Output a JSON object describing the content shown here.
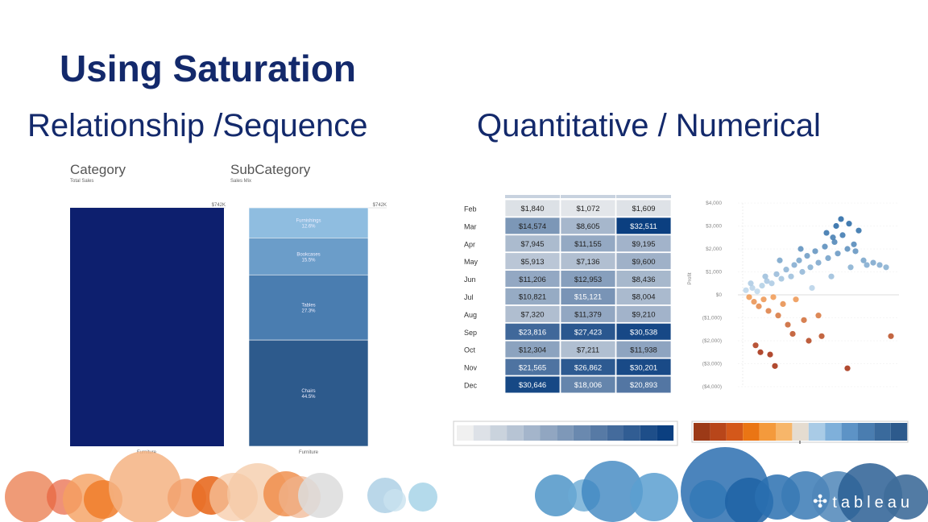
{
  "slide": {
    "title": "Using Saturation",
    "left_heading": "Relationship /Sequence",
    "right_heading": "Quantitative / Numerical",
    "logo_text": "tableau"
  },
  "colors": {
    "title": "#13296b",
    "navy": "#0d1f6e",
    "sub_bars": [
      "#8fbde0",
      "#6b9dc9",
      "#4a7db0",
      "#2d5a8c"
    ],
    "heatmap_low": "#f0f0f0",
    "heatmap_high": "#0b3f80",
    "orange": "#d9541e",
    "blue": "#2f6ea8"
  },
  "chart_data": [
    {
      "type": "bar",
      "title": "Category",
      "subtitle": "Total Sales",
      "categories": [
        "Furniture"
      ],
      "values": [
        742
      ],
      "total_label": "$742K",
      "ylim": [
        0,
        742
      ]
    },
    {
      "type": "bar",
      "title": "SubCategory",
      "subtitle": "Sales Mix",
      "categories": [
        "Furniture"
      ],
      "total_label": "$742K",
      "stack": [
        {
          "name": "Furnishings",
          "pct_label": "12.6%",
          "value": 12.6
        },
        {
          "name": "Bookcases",
          "pct_label": "15.5%",
          "value": 15.5
        },
        {
          "name": "Tables",
          "pct_label": "27.3%",
          "value": 27.3
        },
        {
          "name": "Chairs",
          "pct_label": "44.5%",
          "value": 44.5
        }
      ]
    },
    {
      "type": "heatmap",
      "rows": [
        "Feb",
        "Mar",
        "Apr",
        "May",
        "Jun",
        "Jul",
        "Aug",
        "Sep",
        "Oct",
        "Nov",
        "Dec"
      ],
      "row_labels": [
        "Feb",
        "Mar",
        "Apr",
        "May",
        "Jun",
        "Jul",
        "Aug",
        "Sep",
        "Oct",
        "Nov",
        "Dec"
      ],
      "cells": [
        [
          "$1,840",
          "$1,072",
          "$1,609"
        ],
        [
          "$14,574",
          "$8,605",
          "$32,511"
        ],
        [
          "$7,945",
          "$11,155",
          "$9,195"
        ],
        [
          "$5,913",
          "$7,136",
          "$9,600"
        ],
        [
          "$11,206",
          "$12,953",
          "$8,436"
        ],
        [
          "$10,821",
          "$15,121",
          "$8,004"
        ],
        [
          "$7,320",
          "$11,379",
          "$9,210"
        ],
        [
          "$23,816",
          "$27,423",
          "$30,538"
        ],
        [
          "$12,304",
          "$7,211",
          "$11,938"
        ],
        [
          "$21,565",
          "$26,862",
          "$30,201"
        ],
        [
          "$30,646",
          "$18,006",
          "$20,893"
        ]
      ],
      "values": [
        [
          1840,
          1072,
          1609
        ],
        [
          14574,
          8605,
          32511
        ],
        [
          7945,
          11155,
          9195
        ],
        [
          5913,
          7136,
          9600
        ],
        [
          11206,
          12953,
          8436
        ],
        [
          10821,
          15121,
          8004
        ],
        [
          7320,
          11379,
          9210
        ],
        [
          23816,
          27423,
          30538
        ],
        [
          12304,
          7211,
          11938
        ],
        [
          21565,
          26862,
          30201
        ],
        [
          30646,
          18006,
          20893
        ]
      ],
      "value_range": [
        0,
        32511
      ]
    },
    {
      "type": "scatter",
      "ylabel": "Profit",
      "yticks": [
        "$4,000",
        "$3,000",
        "$2,000",
        "$1,000",
        "$0",
        "($1,000)",
        "($2,000)",
        "($3,000)",
        "($4,000)"
      ],
      "ylim": [
        -4000,
        4000
      ],
      "xlim": [
        0,
        10
      ],
      "diverging_colors": true,
      "points": [
        {
          "x": 0.5,
          "y": 200
        },
        {
          "x": 0.7,
          "y": -100
        },
        {
          "x": 0.9,
          "y": 300
        },
        {
          "x": 1.0,
          "y": -300
        },
        {
          "x": 1.2,
          "y": 150
        },
        {
          "x": 1.3,
          "y": -500
        },
        {
          "x": 1.5,
          "y": 400
        },
        {
          "x": 1.6,
          "y": -200
        },
        {
          "x": 1.8,
          "y": 600
        },
        {
          "x": 1.9,
          "y": -700
        },
        {
          "x": 2.1,
          "y": 500
        },
        {
          "x": 2.2,
          "y": -100
        },
        {
          "x": 2.4,
          "y": 900
        },
        {
          "x": 2.5,
          "y": -900
        },
        {
          "x": 2.7,
          "y": 700
        },
        {
          "x": 2.8,
          "y": -400
        },
        {
          "x": 3.0,
          "y": 1100
        },
        {
          "x": 3.1,
          "y": -1300
        },
        {
          "x": 3.3,
          "y": 800
        },
        {
          "x": 3.5,
          "y": 1300
        },
        {
          "x": 3.6,
          "y": -200
        },
        {
          "x": 3.8,
          "y": 1500
        },
        {
          "x": 4.0,
          "y": 1000
        },
        {
          "x": 4.1,
          "y": -1100
        },
        {
          "x": 4.3,
          "y": 1700
        },
        {
          "x": 4.5,
          "y": 1200
        },
        {
          "x": 4.6,
          "y": 300
        },
        {
          "x": 4.8,
          "y": 1900
        },
        {
          "x": 5.0,
          "y": 1400
        },
        {
          "x": 5.2,
          "y": -1800
        },
        {
          "x": 5.4,
          "y": 2100
        },
        {
          "x": 5.6,
          "y": 1600
        },
        {
          "x": 5.8,
          "y": 800
        },
        {
          "x": 6.0,
          "y": 2300
        },
        {
          "x": 6.2,
          "y": 1800
        },
        {
          "x": 6.5,
          "y": 2600
        },
        {
          "x": 6.8,
          "y": 2000
        },
        {
          "x": 7.0,
          "y": 1200
        },
        {
          "x": 7.2,
          "y": 2200
        },
        {
          "x": 7.5,
          "y": 2800
        },
        {
          "x": 7.8,
          "y": 1500
        },
        {
          "x": 8.0,
          "y": 1300
        },
        {
          "x": 8.4,
          "y": 1400
        },
        {
          "x": 8.8,
          "y": 1300
        },
        {
          "x": 9.2,
          "y": 1200
        },
        {
          "x": 9.5,
          "y": -1800
        },
        {
          "x": 1.4,
          "y": -2500
        },
        {
          "x": 2.0,
          "y": -2600
        },
        {
          "x": 2.3,
          "y": -3100
        },
        {
          "x": 1.1,
          "y": -2200
        },
        {
          "x": 6.8,
          "y": -3200
        },
        {
          "x": 3.4,
          "y": -1700
        },
        {
          "x": 4.4,
          "y": -2000
        },
        {
          "x": 5.0,
          "y": -900
        },
        {
          "x": 0.8,
          "y": 500
        },
        {
          "x": 1.7,
          "y": 800
        },
        {
          "x": 2.6,
          "y": 1500
        },
        {
          "x": 3.9,
          "y": 2000
        },
        {
          "x": 5.5,
          "y": 2700
        },
        {
          "x": 6.1,
          "y": 3000
        },
        {
          "x": 6.4,
          "y": 3300
        },
        {
          "x": 6.9,
          "y": 3100
        },
        {
          "x": 5.9,
          "y": 2500
        },
        {
          "x": 7.3,
          "y": 1900
        }
      ]
    }
  ],
  "legends": {
    "sequential_steps": 13,
    "diverging_steps": 13
  }
}
